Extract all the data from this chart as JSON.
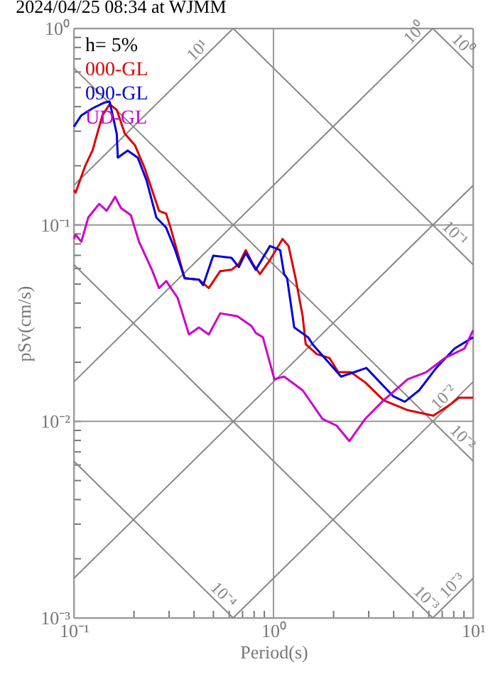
{
  "chart_data": {
    "type": "line",
    "title": "2024/04/25 08:34 at WJMM",
    "xlabel": "Period(s)",
    "ylabel": "pSv(cm/s)",
    "log": "xy",
    "grid": true,
    "legend": "top left",
    "xlim": [
      0.1,
      10
    ],
    "ylim": [
      0.001,
      1
    ],
    "xticks": [
      {
        "value": 0.1,
        "label": "10⁻¹"
      },
      {
        "value": 0.2,
        "label": null
      },
      {
        "value": 0.3,
        "label": null
      },
      {
        "value": 0.4,
        "label": null
      },
      {
        "value": 0.5,
        "label": null
      },
      {
        "value": 0.6,
        "label": null
      },
      {
        "value": 0.7,
        "label": null
      },
      {
        "value": 0.8,
        "label": null
      },
      {
        "value": 0.9,
        "label": null
      },
      {
        "value": 1,
        "label": "10⁰"
      },
      {
        "value": 2,
        "label": null
      },
      {
        "value": 3,
        "label": null
      },
      {
        "value": 4,
        "label": null
      },
      {
        "value": 5,
        "label": null
      },
      {
        "value": 6,
        "label": null
      },
      {
        "value": 7,
        "label": null
      },
      {
        "value": 8,
        "label": null
      },
      {
        "value": 9,
        "label": null
      },
      {
        "value": 10,
        "label": "10¹"
      }
    ],
    "yticks": [
      {
        "value": 0.001,
        "label": "10⁻³"
      },
      {
        "value": 0.002,
        "label": null
      },
      {
        "value": 0.003,
        "label": null
      },
      {
        "value": 0.004,
        "label": null
      },
      {
        "value": 0.005,
        "label": null
      },
      {
        "value": 0.006,
        "label": null
      },
      {
        "value": 0.007,
        "label": null
      },
      {
        "value": 0.008,
        "label": null
      },
      {
        "value": 0.009,
        "label": null
      },
      {
        "value": 0.01,
        "label": "10⁻²"
      },
      {
        "value": 0.02,
        "label": null
      },
      {
        "value": 0.03,
        "label": null
      },
      {
        "value": 0.04,
        "label": null
      },
      {
        "value": 0.05,
        "label": null
      },
      {
        "value": 0.06,
        "label": null
      },
      {
        "value": 0.07,
        "label": null
      },
      {
        "value": 0.08,
        "label": null
      },
      {
        "value": 0.09,
        "label": null
      },
      {
        "value": 0.1,
        "label": "10⁻¹"
      },
      {
        "value": 0.2,
        "label": null
      },
      {
        "value": 0.3,
        "label": null
      },
      {
        "value": 0.4,
        "label": null
      },
      {
        "value": 0.5,
        "label": null
      },
      {
        "value": 0.6,
        "label": null
      },
      {
        "value": 0.7,
        "label": null
      },
      {
        "value": 0.8,
        "label": null
      },
      {
        "value": 0.9,
        "label": null
      },
      {
        "value": 1,
        "label": "10⁰"
      }
    ],
    "annotations": [
      "h= 5%",
      {
        "text": "10¹",
        "x": 0.45,
        "y": 0.716
      },
      {
        "text": "10⁰",
        "x": 5.5,
        "y": 0.875
      },
      {
        "text": "10⁰",
        "x": 8.2,
        "y": 0.766
      },
      {
        "text": "10⁻¹",
        "x": 7.5,
        "y": 0.0837
      },
      {
        "text": "10⁻²",
        "x": 7.7,
        "y": 0.01225
      },
      {
        "text": "10⁻²",
        "x": 8.2,
        "y": 0.00766
      },
      {
        "text": "10⁻⁴",
        "x": 0.52,
        "y": 0.00121
      },
      {
        "text": "10⁻³",
        "x": 5.4,
        "y": 0.00116
      },
      {
        "text": "10⁻³",
        "x": 8.5,
        "y": 0.00135
      }
    ],
    "series": [
      {
        "type": "line",
        "color": "#888888",
        "x": [
          0.1,
          0.628
        ],
        "values": [
          0.159,
          1
        ]
      },
      {
        "type": "line",
        "color": "#888888",
        "x": [
          0.1,
          6.28
        ],
        "values": [
          0.0159,
          1
        ]
      },
      {
        "type": "line",
        "color": "#888888",
        "x": [
          0.1,
          10
        ],
        "values": [
          0.00159,
          0.159
        ]
      },
      {
        "type": "line",
        "color": "#888888",
        "x": [
          0.628,
          10
        ],
        "values": [
          0.001,
          0.0159
        ]
      },
      {
        "type": "line",
        "color": "#888888",
        "x": [
          6.28,
          10
        ],
        "values": [
          0.001,
          0.00159
        ]
      },
      {
        "type": "line",
        "color": "#888888",
        "x": [
          6.28,
          10
        ],
        "values": [
          1,
          0.628
        ]
      },
      {
        "type": "line",
        "color": "#888888",
        "x": [
          0.628,
          10
        ],
        "values": [
          1,
          0.0628
        ]
      },
      {
        "type": "line",
        "color": "#888888",
        "x": [
          0.1,
          10
        ],
        "values": [
          0.628,
          0.00628
        ]
      },
      {
        "type": "line",
        "color": "#888888",
        "x": [
          0.1,
          6.28
        ],
        "values": [
          0.0628,
          0.001
        ]
      },
      {
        "type": "line",
        "color": "#888888",
        "x": [
          0.1,
          0.628
        ],
        "values": [
          0.00628,
          0.001
        ]
      },
      {
        "name": "000-GL",
        "color": "#dd0000",
        "x": [
          0.1,
          0.102,
          0.114,
          0.124,
          0.139,
          0.151,
          0.164,
          0.18,
          0.202,
          0.227,
          0.25,
          0.267,
          0.29,
          0.305,
          0.331,
          0.359,
          0.423,
          0.474,
          0.541,
          0.616,
          0.67,
          0.726,
          0.789,
          0.855,
          0.96,
          1.11,
          1.19,
          1.29,
          1.4,
          1.45,
          1.65,
          1.91,
          2.11,
          2.44,
          2.88,
          3.56,
          4.71,
          6.32,
          7.69,
          8.49,
          10
        ],
        "values": [
          0.15,
          0.146,
          0.2,
          0.239,
          0.361,
          0.411,
          0.385,
          0.291,
          0.255,
          0.193,
          0.144,
          0.118,
          0.114,
          0.0968,
          0.072,
          0.0535,
          0.0527,
          0.0477,
          0.0582,
          0.0591,
          0.0632,
          0.0744,
          0.0632,
          0.0562,
          0.0663,
          0.0848,
          0.0781,
          0.0535,
          0.0343,
          0.0247,
          0.022,
          0.021,
          0.0178,
          0.0178,
          0.0158,
          0.0128,
          0.0114,
          0.0107,
          0.0122,
          0.0132,
          0.0132
        ]
      },
      {
        "name": "090-GL",
        "color": "#0000dd",
        "x": [
          0.1,
          0.109,
          0.124,
          0.141,
          0.151,
          0.164,
          0.166,
          0.186,
          0.209,
          0.231,
          0.259,
          0.29,
          0.32,
          0.359,
          0.423,
          0.444,
          0.499,
          0.616,
          0.67,
          0.726,
          0.815,
          0.96,
          1.08,
          1.13,
          1.17,
          1.27,
          1.49,
          1.57,
          2.18,
          2.92,
          3.99,
          4.55,
          5.37,
          6.53,
          8.07,
          10
        ],
        "values": [
          0.316,
          0.361,
          0.392,
          0.418,
          0.425,
          0.291,
          0.22,
          0.239,
          0.22,
          0.169,
          0.109,
          0.0968,
          0.0756,
          0.0535,
          0.0527,
          0.0493,
          0.0697,
          0.068,
          0.061,
          0.072,
          0.0591,
          0.0781,
          0.0744,
          0.0562,
          0.0535,
          0.0301,
          0.0268,
          0.0247,
          0.0169,
          0.0187,
          0.0134,
          0.0126,
          0.0144,
          0.0187,
          0.0235,
          0.0268
        ]
      },
      {
        "name": "UD-GL",
        "color": "#cc00cc",
        "x": [
          0.1,
          0.102,
          0.109,
          0.118,
          0.134,
          0.146,
          0.161,
          0.172,
          0.193,
          0.212,
          0.246,
          0.267,
          0.29,
          0.331,
          0.377,
          0.423,
          0.474,
          0.541,
          0.659,
          0.776,
          0.815,
          0.885,
          1.01,
          1.13,
          1.4,
          1.76,
          2.07,
          2.4,
          2.88,
          3.56,
          4.71,
          5.82,
          7.21,
          9.06,
          10
        ],
        "values": [
          0.0848,
          0.0891,
          0.0821,
          0.109,
          0.128,
          0.118,
          0.139,
          0.122,
          0.112,
          0.0821,
          0.0591,
          0.0477,
          0.0518,
          0.0425,
          0.0277,
          0.0301,
          0.0277,
          0.0355,
          0.0343,
          0.0306,
          0.0282,
          0.0268,
          0.0164,
          0.0169,
          0.0144,
          0.0103,
          0.00952,
          0.00794,
          0.0103,
          0.0128,
          0.0164,
          0.0178,
          0.021,
          0.0235,
          0.0291
        ]
      }
    ]
  }
}
